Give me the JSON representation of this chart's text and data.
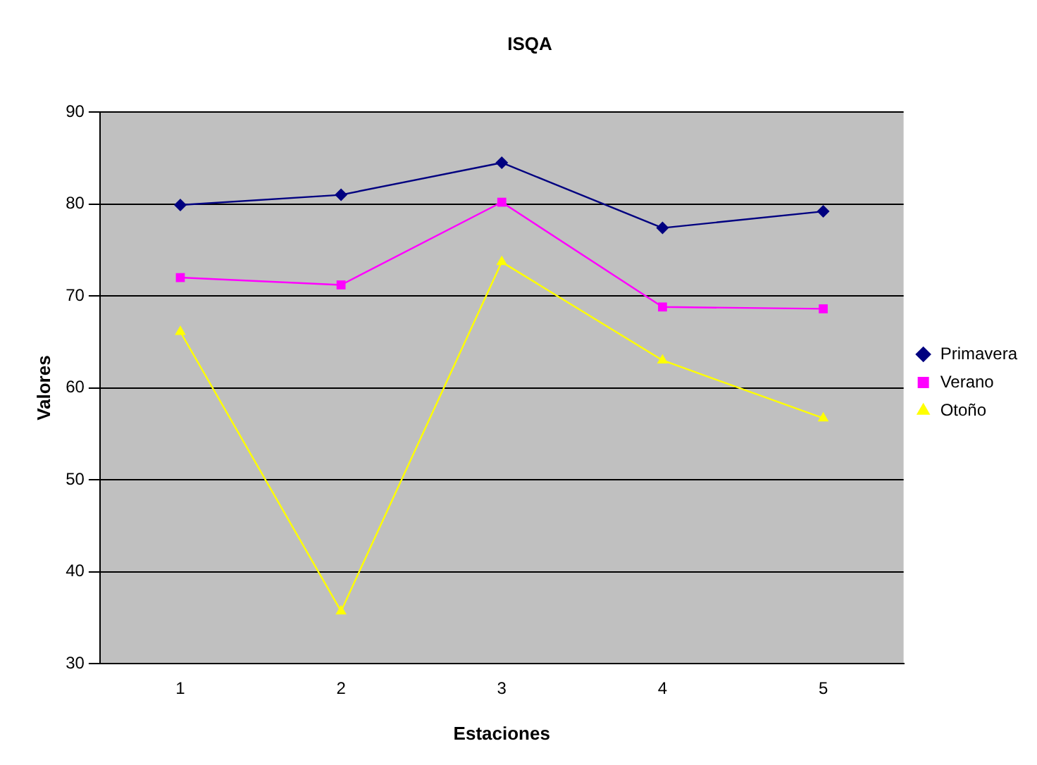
{
  "chart_data": {
    "type": "line",
    "title": "ISQA",
    "xlabel": "Estaciones",
    "ylabel": "Valores",
    "categories": [
      "1",
      "2",
      "3",
      "4",
      "5"
    ],
    "series": [
      {
        "name": "Primavera",
        "color": "#000080",
        "marker": "diamond",
        "values": [
          79.9,
          81.0,
          84.5,
          77.4,
          79.2
        ]
      },
      {
        "name": "Verano",
        "color": "#ff00ff",
        "marker": "square",
        "values": [
          72.0,
          71.2,
          80.2,
          68.8,
          68.6
        ]
      },
      {
        "name": "Otoño",
        "color": "#ffff00",
        "marker": "triangle",
        "values": [
          66.1,
          35.7,
          73.7,
          63.0,
          56.7
        ]
      }
    ],
    "ylim": [
      30,
      90
    ],
    "yticks": [
      30,
      40,
      50,
      60,
      70,
      80,
      90
    ],
    "grid": "y",
    "legend": "right"
  }
}
